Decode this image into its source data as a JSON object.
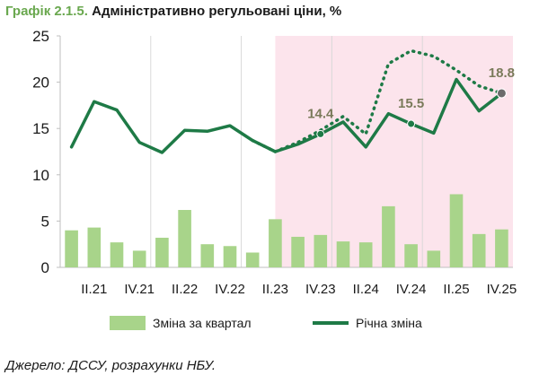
{
  "title": {
    "number": "Графік 2.1.5.",
    "text": " Адміністративно регульовані ціни, %"
  },
  "source": "Джерело: ДССУ, розрахунки НБУ.",
  "colors": {
    "title_number": "#6aa84f",
    "bars": "#a8d48a",
    "line": "#1e7a46",
    "forecast_shade": "#fce4ec"
  },
  "chart_data": {
    "type": "bar",
    "ylim": [
      0,
      25
    ],
    "yticks": [
      0,
      5,
      10,
      15,
      20,
      25
    ],
    "tick_labels": [
      "II.21",
      "IV.21",
      "II.22",
      "IV.22",
      "II.23",
      "IV.23",
      "II.24",
      "IV.24",
      "II.25",
      "IV.25"
    ],
    "tick_positions": [
      1,
      3,
      5,
      7,
      9,
      11,
      13,
      15,
      17,
      19
    ],
    "forecast_start": 9.5,
    "series": [
      {
        "name": "Зміна за квартал",
        "kind": "bar",
        "x": [
          0,
          1,
          2,
          3,
          4,
          5,
          6,
          7,
          8,
          9,
          10,
          11,
          12,
          13,
          14,
          15,
          16,
          17,
          18,
          19
        ],
        "values": [
          4.0,
          4.3,
          2.7,
          1.8,
          3.2,
          6.2,
          2.5,
          2.3,
          1.6,
          5.2,
          3.3,
          3.5,
          2.8,
          2.7,
          6.6,
          2.5,
          1.8,
          7.9,
          3.6,
          4.1
        ]
      },
      {
        "name": "Річна зміна",
        "kind": "line",
        "x": [
          0,
          1,
          2,
          3,
          4,
          5,
          6,
          7,
          8,
          9,
          10,
          11,
          12,
          13,
          14,
          15,
          16,
          17,
          18,
          19
        ],
        "values": [
          13.0,
          17.9,
          17.0,
          13.5,
          12.4,
          14.8,
          14.7,
          15.3,
          13.7,
          12.5,
          13.3,
          14.4,
          15.7,
          13.0,
          16.6,
          15.5,
          14.5,
          20.3,
          16.9,
          18.8
        ]
      },
      {
        "kind": "dotted-line",
        "x": [
          8,
          9,
          10,
          11,
          12,
          13,
          14,
          15,
          16,
          17,
          18,
          19
        ],
        "values": [
          13.7,
          12.5,
          13.5,
          14.8,
          16.3,
          14.4,
          22.0,
          23.4,
          22.8,
          21.3,
          19.6,
          18.8
        ]
      }
    ],
    "data_labels": [
      {
        "x": 11,
        "text": "14.4",
        "value": 14.4
      },
      {
        "x": 15,
        "text": "15.5",
        "value": 15.5
      },
      {
        "x": 19,
        "text": "18.8",
        "value": 18.8
      }
    ],
    "grid": "vertical"
  },
  "legend": {
    "bar_label": "Зміна за квартал",
    "line_label": "Річна зміна"
  }
}
